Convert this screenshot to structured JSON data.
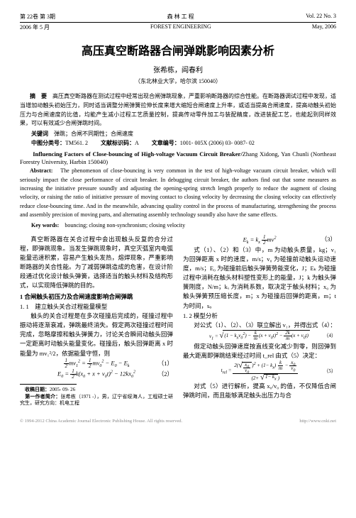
{
  "header": {
    "vol_issue_zh": "第 22卷 第 3期",
    "journal_zh": "森 林 工 程",
    "vol_issue_en": "Vol. 22 No. 3",
    "date_zh": "2006 年 5 月",
    "journal_en": "FOREST ENGINEERING",
    "date_en": "May, 2006"
  },
  "title_zh": "高压真空断路器合闸弹跳影响因素分析",
  "authors": "张希栋，阎春利",
  "affil": "（东北林业大学，哈尔滨 150040）",
  "abs_zh_label": "摘　要",
  "abs_zh": "高压真空断路器在测试过程中经常出现合闸弹跳现象，严重影响断路器的综合性能。在断路器调试过程中发现，适当增加动触头初始压力，同时适当调整分闸弹簧拉伸长度来增大缩短合闸速度上升率，或适当提高合闸速度，提高动触头初始压力与合闸速度的比值，均能产生减小过程工艺质量控制，提高传动零件加工与装配精度，改进装配工艺，也能起到同样效果，可以有效减少合闸弹跳时间。",
  "kw_zh_label": "关键词",
  "kw_zh": "弹跳；合闸不同期性；合闸速度",
  "clc_label": "中图分类号：",
  "clc": "TM561. 2",
  "doc_code_label": "文献标识码：",
  "doc_code": "A",
  "article_id_label": "文章编号：",
  "article_id": "1001- 005X (2006) 03- 0087- 02",
  "title_en": "Influencing Factors of Close-bouncing of High-voltage Vacuum Circuit Breaker/",
  "authors_en": "Zhang Xidong, Yan Chunli (Northeast Forestry University, Harbin 150040)",
  "abs_en_label": "Abstract:",
  "abs_en": "The phenomenon of close-bouncing is very common in the test of high-voltage vacuum circuit breaker, which will seriously impact the close performance of circuit breaker. In debugging circuit breaker, the authors find out that some measures as increasing the initiative pressure soundly and adjusting the opening-spring stretch length properly to reduce the augment of closing velocity, or raising the ratio of initiative pressure of moving contact to closing velocity by decreasing the closing velocity can effectively reduce close-bouncing time. And in the meanwhile, advancing quality control in the process of manufacturing, strengthening the process and assembly precision of moving parts, and alternating assembly technology soundly also have the same effects.",
  "kw_en_label": "Key words:",
  "kw_en": "bouncing; closing non-synchronism; closing velocity",
  "left": {
    "p1": "真空断路器在关合过程中会出现触头反复的合分过程，即弹跳现象。当发生弹跳现象时，真空灭弧室内电弧能量迅速积累，容易产生触头发热，熔焊现象，严重影响断路器的关合性能。为了减弱弹跳造成的危害，在设计阶段通过优化设计触头弹簧，选择适当的触头材料及结构形式，以实现降低弹跳的目的。",
    "sec1": "1 合闸触头初压力及合闸速度影响合闸弹跳",
    "sub11": "1. 1　建立触头关合过程能量模型",
    "p2": "触头的关合过程是在多次碰撞后完成的，碰撞过程中振动将逐渐衰减，弹跳最终消失。假定两次碰撞过程时间完成，忽略摩擦和触头弹簧力，讨论关合瞬间动触头回弹一定距离时动触头能量变化。碰撞后，触头回弹距离 x 时能量为 mv₁²/2，依据能量守恒，则",
    "eq1_lhs": "mv₁² = ",
    "eq1_rhs": "mv₀² − E₀ − Eₖ",
    "eq1_n": "（1）",
    "eq2_lhs": "E₀ = ",
    "eq2_rhs": "k(x₀ + x + v₀t)² − 12kx₀²",
    "eq2_n": "（2）",
    "fn_date_label": "收稿日期：",
    "fn_date": "2005- 09- 26",
    "fn_author_label": "第一作者简介：",
    "fn_author": "张希栋（1971 -），男，辽宁省绥海人，工程硕士研究生，研究方向：机电工程"
  },
  "right": {
    "eq3_lhs": "Eₖ = kₓ",
    "eq3_rhs": "mv²",
    "eq3_n": "（3）",
    "p1": "式（1）、（2）和（3）中，m 为动触头质量，kg；v₁ 为回弹距离 x 时的速度，m/s；v₀ 为碰撞前动触头运动速度，m/s；E₀ 为碰撞前后触头弹簧势能变化，J；Eₖ 为碰撞过程中消耗在触头材料塑性变形上的能量，J；k 为触头弹簧刚度，N/m；kₓ 为消耗系数，取决定于触头材料；x₀ 为触头弹簧预压缩长度，m；x 为碰撞后回弹的距离，m；t 为时间，s。",
    "sub12": "1. 2 模型分析",
    "p2": "对公式（1）、（2）、（3）联立解出 v₁，并得出式（4）：",
    "eq4": "v₁ = √((1 − kₓv₀²) − (k/m)(x + v₀t)² − (2k/m)(x + v₀t))",
    "eq4_n": "（4）",
    "p3": "假定动触头回弹速度按直线变化减少到零，则回弹到最大距离即弹跳结束经过时间 t_rel 由式（5）决定：",
    "eq5_lhs": "t_rel = ",
    "eq5_n": "（5）",
    "p4": "对式（5）进行解析，提高 x₀/v₀ 的值，不仅降低合闸弹跳时间，而且能够满足触头出压力与合"
  },
  "footer": {
    "left": "© 1994-2012 China Academic Journal Electronic Publishing House. All rights reserved.",
    "right": "http://www.cnki.net"
  }
}
